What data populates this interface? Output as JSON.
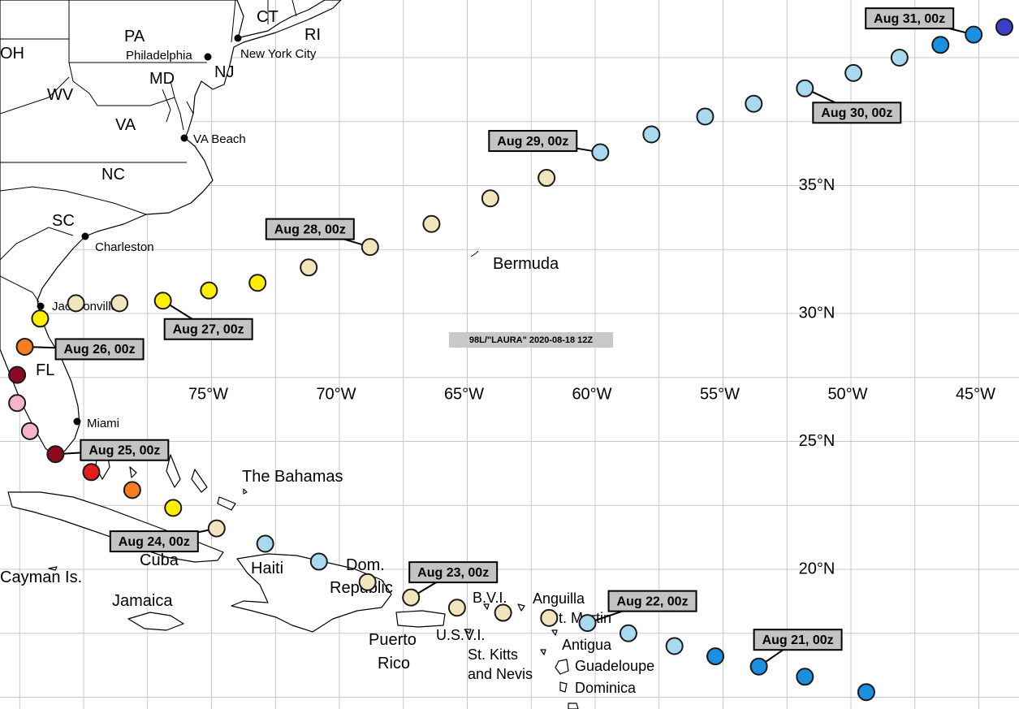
{
  "title": "98L/\"LAURA\" 2020-08-18 12Z",
  "lon_ticks": [
    {
      "value": -75,
      "label": "75°W"
    },
    {
      "value": -70,
      "label": "70°W"
    },
    {
      "value": -65,
      "label": "65°W"
    },
    {
      "value": -60,
      "label": "60°W"
    },
    {
      "value": -55,
      "label": "55°W"
    },
    {
      "value": -50,
      "label": "50°W"
    },
    {
      "value": -45,
      "label": "45°W"
    }
  ],
  "lat_ticks": [
    {
      "value": 35,
      "label": "35°N"
    },
    {
      "value": 30,
      "label": "30°N"
    },
    {
      "value": 25,
      "label": "25°N"
    },
    {
      "value": 20,
      "label": "20°N"
    }
  ],
  "grid_lon": [
    -82.5,
    -80,
    -77.5,
    -75,
    -72.5,
    -70,
    -67.5,
    -65,
    -62.5,
    -60,
    -57.5,
    -55,
    -52.5,
    -50,
    -47.5,
    -45,
    -42.5
  ],
  "grid_lat": [
    15,
    17.5,
    20,
    22.5,
    25,
    27.5,
    30,
    32.5,
    35,
    37.5,
    40,
    42.5
  ],
  "places": [
    "OH",
    "PA",
    "Philadelphia",
    "NJ",
    "New York City",
    "CT",
    "RI",
    "MD",
    "WV",
    "VA",
    "VA Beach",
    "NC",
    "SC",
    "Charleston",
    "Jacksonville",
    "FL",
    "Miami",
    "The Bahamas",
    "Cuba",
    "Cayman Is.",
    "Jamaica",
    "Haiti",
    "Dom.",
    "Republic",
    "Puerto",
    "Rico",
    "U.S.V.I.",
    "B.V.I.",
    "St. Kitts",
    "and Nevis",
    "Anguilla",
    "St. Martin",
    "Antigua",
    "Guadeloupe",
    "Dominica",
    "Bermuda"
  ],
  "track": [
    {
      "lon": -44.0,
      "lat": 41.2,
      "color": "#3b3fc4"
    },
    {
      "lon": -45.2,
      "lat": 40.9,
      "color": "#1b8fe0",
      "label": "Aug 31, 00z"
    },
    {
      "lon": -46.5,
      "lat": 40.5,
      "color": "#1b8fe0"
    },
    {
      "lon": -48.1,
      "lat": 40.0,
      "color": "#a8d9ee"
    },
    {
      "lon": -49.9,
      "lat": 39.4,
      "color": "#a8d9ee"
    },
    {
      "lon": -51.8,
      "lat": 38.8,
      "color": "#a8d9ee",
      "label": "Aug 30, 00z"
    },
    {
      "lon": -53.8,
      "lat": 38.2,
      "color": "#a8d9ee"
    },
    {
      "lon": -55.7,
      "lat": 37.7,
      "color": "#a8d9ee"
    },
    {
      "lon": -57.8,
      "lat": 37.0,
      "color": "#a8d9ee"
    },
    {
      "lon": -59.8,
      "lat": 36.3,
      "color": "#a8d9ee",
      "label": "Aug 29, 00z"
    },
    {
      "lon": -61.9,
      "lat": 35.3,
      "color": "#f2e4bd"
    },
    {
      "lon": -64.1,
      "lat": 34.5,
      "color": "#f2e4bd"
    },
    {
      "lon": -66.4,
      "lat": 33.5,
      "color": "#f2e4bd"
    },
    {
      "lon": -68.8,
      "lat": 32.6,
      "color": "#f2e4bd",
      "label": "Aug 28, 00z"
    },
    {
      "lon": -71.2,
      "lat": 31.8,
      "color": "#f2e4bd"
    },
    {
      "lon": -73.2,
      "lat": 31.2,
      "color": "#ffee00"
    },
    {
      "lon": -75.1,
      "lat": 30.9,
      "color": "#ffee00"
    },
    {
      "lon": -76.9,
      "lat": 30.5,
      "color": "#ffee00",
      "label": "Aug 27, 00z"
    },
    {
      "lon": -78.6,
      "lat": 30.4,
      "color": "#f2e4bd"
    },
    {
      "lon": -80.3,
      "lat": 30.4,
      "color": "#f2e4bd"
    },
    {
      "lon": -81.7,
      "lat": 29.8,
      "color": "#ffee00"
    },
    {
      "lon": -82.3,
      "lat": 28.7,
      "color": "#f57f20",
      "label": "Aug 26, 00z"
    },
    {
      "lon": -82.6,
      "lat": 27.6,
      "color": "#8c0a1e"
    },
    {
      "lon": -82.6,
      "lat": 26.5,
      "color": "#f6b5c5"
    },
    {
      "lon": -82.1,
      "lat": 25.4,
      "color": "#f6b5c5"
    },
    {
      "lon": -81.1,
      "lat": 24.5,
      "color": "#8c0a1e",
      "label": "Aug 25, 00z"
    },
    {
      "lon": -79.7,
      "lat": 23.8,
      "color": "#e41e1e"
    },
    {
      "lon": -78.1,
      "lat": 23.1,
      "color": "#f57f20"
    },
    {
      "lon": -76.5,
      "lat": 22.4,
      "color": "#ffee00"
    },
    {
      "lon": -74.8,
      "lat": 21.6,
      "color": "#f2e4bd",
      "label": "Aug 24, 00z"
    },
    {
      "lon": -72.9,
      "lat": 21.0,
      "color": "#a8d9ee"
    },
    {
      "lon": -70.8,
      "lat": 20.3,
      "color": "#a8d9ee"
    },
    {
      "lon": -68.9,
      "lat": 19.5,
      "color": "#f2e4bd"
    },
    {
      "lon": -67.2,
      "lat": 18.9,
      "color": "#f2e4bd",
      "label": "Aug 23, 00z"
    },
    {
      "lon": -65.4,
      "lat": 18.5,
      "color": "#f2e4bd"
    },
    {
      "lon": -63.6,
      "lat": 18.3,
      "color": "#f2e4bd"
    },
    {
      "lon": -61.8,
      "lat": 18.1,
      "color": "#f2e4bd"
    },
    {
      "lon": -60.3,
      "lat": 17.9,
      "color": "#a8d9ee",
      "label": "Aug 22, 00z"
    },
    {
      "lon": -58.7,
      "lat": 17.5,
      "color": "#a8d9ee"
    },
    {
      "lon": -56.9,
      "lat": 17.0,
      "color": "#a8d9ee"
    },
    {
      "lon": -55.3,
      "lat": 16.6,
      "color": "#1b8fe0"
    },
    {
      "lon": -53.6,
      "lat": 16.2,
      "color": "#1b8fe0",
      "label": "Aug 21, 00z"
    },
    {
      "lon": -51.8,
      "lat": 15.8,
      "color": "#1b8fe0"
    },
    {
      "lon": -49.4,
      "lat": 15.2,
      "color": "#1b8fe0"
    }
  ]
}
